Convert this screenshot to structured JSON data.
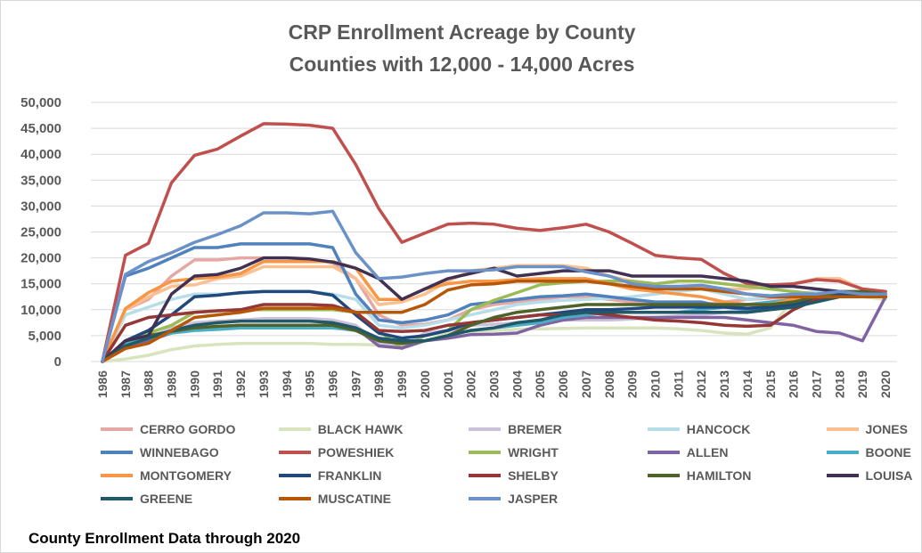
{
  "chart_data": {
    "type": "line",
    "title": "CRP Enrollment Acreage by County",
    "subtitle": "Counties with 12,000 - 14,000 Acres",
    "footnote": "County Enrollment Data through 2020",
    "x": [
      "1986",
      "1987",
      "1988",
      "1989",
      "1990",
      "1991",
      "1992",
      "1993",
      "1994",
      "1995",
      "1996",
      "1997",
      "1998",
      "1999",
      "2000",
      "2001",
      "2002",
      "2003",
      "2004",
      "2005",
      "2006",
      "2007",
      "2008",
      "2009",
      "2010",
      "2011",
      "2012",
      "2013",
      "2014",
      "2015",
      "2016",
      "2017",
      "2018",
      "2019",
      "2020"
    ],
    "ylim": [
      0,
      50000
    ],
    "yticks": [
      "0",
      "5,000",
      "10,000",
      "15,000",
      "20,000",
      "25,000",
      "30,000",
      "35,000",
      "40,000",
      "45,000",
      "50,000"
    ],
    "ytick_values": [
      0,
      5000,
      10000,
      15000,
      20000,
      25000,
      30000,
      35000,
      40000,
      45000,
      50000
    ],
    "grid": true,
    "legend_position": "bottom",
    "series": [
      {
        "name": "CERRO GORDO",
        "color": "#e6a8a5",
        "values": [
          0,
          10000,
          12000,
          16500,
          19600,
          19600,
          20000,
          20000,
          20000,
          19800,
          19000,
          16000,
          9000,
          7000,
          7200,
          8000,
          10000,
          11000,
          11500,
          12000,
          12500,
          12500,
          12000,
          11500,
          11000,
          11000,
          11000,
          11500,
          12000,
          12200,
          12500,
          13000,
          13000,
          13000,
          13000
        ]
      },
      {
        "name": "BLACK HAWK",
        "color": "#d7e4bd",
        "values": [
          0,
          500,
          1200,
          2300,
          3000,
          3300,
          3500,
          3500,
          3500,
          3500,
          3300,
          3300,
          3200,
          3000,
          5000,
          5500,
          5800,
          6000,
          6200,
          6300,
          6400,
          6500,
          6500,
          6500,
          6500,
          6300,
          6000,
          5500,
          5300,
          6500,
          12000,
          13000,
          13000,
          12500,
          12000
        ]
      },
      {
        "name": "BREMER",
        "color": "#ccc1da",
        "values": [
          0,
          3000,
          4500,
          6500,
          7500,
          7800,
          8000,
          8300,
          8300,
          8300,
          8000,
          7000,
          3500,
          2800,
          5500,
          6000,
          7000,
          7200,
          7500,
          7800,
          8000,
          8000,
          8000,
          8200,
          8500,
          8800,
          9000,
          9500,
          10000,
          10500,
          11500,
          12500,
          13000,
          13000,
          13000
        ]
      },
      {
        "name": "HANCOCK",
        "color": "#b7dee8",
        "values": [
          0,
          9000,
          10500,
          12000,
          13000,
          13000,
          13200,
          13500,
          13500,
          13500,
          13000,
          12000,
          7000,
          6500,
          7000,
          8000,
          9000,
          10000,
          11000,
          11500,
          11800,
          12000,
          12200,
          12500,
          13000,
          13500,
          14000,
          13000,
          12000,
          12500,
          13000,
          13500,
          13500,
          13000,
          12500
        ]
      },
      {
        "name": "JONES",
        "color": "#fac090",
        "values": [
          0,
          10000,
          12500,
          14500,
          14800,
          16000,
          16500,
          18300,
          18300,
          18300,
          18300,
          16000,
          11000,
          11500,
          13000,
          15500,
          17500,
          18000,
          18500,
          18500,
          18500,
          18000,
          16500,
          15500,
          14500,
          14000,
          14500,
          14000,
          14000,
          14500,
          15000,
          16000,
          16000,
          14000,
          13500
        ]
      },
      {
        "name": "WINNEBAGO",
        "color": "#4f81bd",
        "values": [
          0,
          16500,
          18000,
          20000,
          22000,
          22000,
          22700,
          22700,
          22700,
          22700,
          22000,
          13000,
          8000,
          7500,
          8000,
          9000,
          11000,
          11500,
          12000,
          12500,
          12700,
          13000,
          12500,
          12000,
          11500,
          11500,
          11500,
          10500,
          10000,
          10500,
          11000,
          12000,
          12500,
          12500,
          12500
        ]
      },
      {
        "name": "POWESHIEK",
        "color": "#c0504d",
        "values": [
          0,
          20500,
          22800,
          34500,
          39800,
          41000,
          43500,
          45900,
          45800,
          45600,
          45000,
          38000,
          29500,
          23000,
          24800,
          26500,
          26700,
          26500,
          25700,
          25300,
          25800,
          26500,
          25000,
          22800,
          20500,
          20000,
          19700,
          17000,
          15000,
          14800,
          15000,
          15800,
          15500,
          14000,
          13500
        ]
      },
      {
        "name": "WRIGHT",
        "color": "#9bbb59",
        "values": [
          0,
          4000,
          5500,
          7000,
          9500,
          9800,
          10000,
          10000,
          10000,
          10000,
          10000,
          9500,
          6000,
          2500,
          5000,
          6000,
          10000,
          11800,
          13300,
          14800,
          15200,
          15500,
          15500,
          15500,
          15000,
          15500,
          15500,
          15000,
          14500,
          14000,
          13500,
          13000,
          13500,
          13000,
          13000
        ]
      },
      {
        "name": "ALLEN",
        "color": "#8064a2",
        "values": [
          0,
          3000,
          4000,
          5500,
          6500,
          6700,
          7000,
          7000,
          7000,
          7000,
          7000,
          6500,
          3000,
          2600,
          4000,
          4500,
          5200,
          5300,
          5500,
          7000,
          8000,
          8500,
          8500,
          8500,
          8500,
          8500,
          8500,
          8500,
          8000,
          7500,
          7000,
          5800,
          5500,
          4000,
          12500
        ]
      },
      {
        "name": "BOONE",
        "color": "#4bacc6",
        "values": [
          0,
          3500,
          4500,
          5500,
          6000,
          6200,
          6500,
          6500,
          6500,
          6500,
          6500,
          6000,
          4000,
          3500,
          4000,
          5000,
          6000,
          6500,
          7000,
          7500,
          8500,
          9000,
          9500,
          9500,
          9500,
          9500,
          10000,
          10500,
          11000,
          11500,
          12000,
          12500,
          12500,
          12500,
          12500
        ]
      },
      {
        "name": "MONTGOMERY",
        "color": "#f79646",
        "values": [
          0,
          10200,
          13300,
          15500,
          16000,
          16300,
          17000,
          19300,
          19300,
          19300,
          19300,
          18000,
          12000,
          12000,
          14000,
          15000,
          15500,
          15500,
          15800,
          16000,
          16000,
          16000,
          15000,
          14000,
          13500,
          13000,
          12500,
          11500,
          11000,
          11000,
          12000,
          12500,
          12500,
          12500,
          12500
        ]
      },
      {
        "name": "FRANKLIN",
        "color": "#1f497d",
        "values": [
          0,
          4000,
          6000,
          9000,
          12500,
          12800,
          13300,
          13500,
          13500,
          13500,
          12800,
          9000,
          5500,
          4500,
          5000,
          6000,
          7500,
          8000,
          8500,
          9000,
          9500,
          10000,
          10000,
          10200,
          10500,
          10500,
          10500,
          10500,
          10300,
          10500,
          11000,
          12000,
          13000,
          13000,
          12500
        ]
      },
      {
        "name": "SHELBY",
        "color": "#953735",
        "values": [
          0,
          7000,
          8500,
          9000,
          9500,
          9800,
          10000,
          11000,
          11000,
          11000,
          10800,
          9500,
          6000,
          5800,
          6000,
          7000,
          7500,
          8000,
          8500,
          9000,
          9000,
          9500,
          9000,
          8500,
          8000,
          7800,
          7500,
          7000,
          6800,
          7000,
          10000,
          12000,
          12500,
          12500,
          12500
        ]
      },
      {
        "name": "HAMILTON",
        "color": "#4f6228",
        "values": [
          0,
          4000,
          5000,
          5800,
          6500,
          6800,
          7000,
          7000,
          7000,
          7000,
          7000,
          6000,
          4000,
          3500,
          4000,
          5000,
          7000,
          8500,
          9500,
          10000,
          10500,
          11000,
          11000,
          11000,
          11000,
          11000,
          11000,
          11000,
          11000,
          11000,
          11500,
          12500,
          13500,
          13500,
          13000
        ]
      },
      {
        "name": "LOUISA",
        "color": "#403152",
        "values": [
          0,
          4000,
          5000,
          13000,
          16500,
          16800,
          18000,
          20000,
          20000,
          19800,
          19200,
          18000,
          16000,
          12000,
          14000,
          16000,
          17000,
          18000,
          16500,
          17000,
          17500,
          17500,
          17500,
          16500,
          16500,
          16500,
          16500,
          16000,
          15500,
          14500,
          14500,
          14000,
          13500,
          13000,
          12500
        ]
      },
      {
        "name": "GREENE",
        "color": "#215968",
        "values": [
          0,
          3000,
          4500,
          6000,
          7000,
          7500,
          7800,
          7800,
          7800,
          7800,
          7500,
          6500,
          4500,
          4000,
          4000,
          5000,
          6000,
          6500,
          7500,
          8000,
          9000,
          9500,
          9500,
          9500,
          9500,
          9500,
          9500,
          9500,
          9500,
          10000,
          10500,
          11500,
          12500,
          12500,
          12500
        ]
      },
      {
        "name": "MUSCATINE",
        "color": "#b65708",
        "values": [
          0,
          2500,
          3500,
          6000,
          8500,
          9000,
          9500,
          10300,
          10300,
          10300,
          10300,
          9500,
          9500,
          9500,
          11000,
          13800,
          14800,
          15000,
          15500,
          15500,
          15500,
          15500,
          15000,
          14500,
          14000,
          14000,
          14000,
          13500,
          13000,
          12500,
          12500,
          12500,
          12500,
          12500,
          12500
        ]
      },
      {
        "name": "JASPER",
        "color": "#6b92c8",
        "values": [
          0,
          16800,
          19300,
          21000,
          23000,
          24500,
          26200,
          28700,
          28700,
          28500,
          29000,
          21000,
          16000,
          16300,
          17000,
          17500,
          17500,
          17700,
          18300,
          18300,
          18300,
          17300,
          16500,
          15000,
          14500,
          14500,
          14700,
          14000,
          13000,
          12700,
          13000,
          13000,
          13500,
          13000,
          13000
        ]
      }
    ]
  }
}
